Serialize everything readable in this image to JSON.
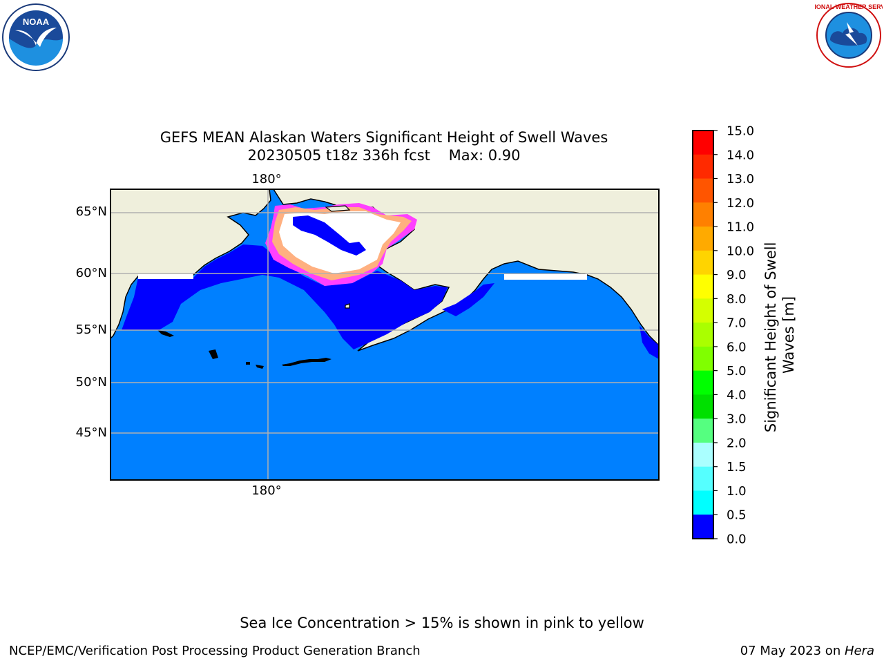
{
  "header": {
    "title_line1": "GEFS MEAN Alaskan Waters Significant Height of Swell Waves",
    "title_line2": "20230505 t18z 336h fcst    Max: 0.90"
  },
  "map": {
    "lat_labels": [
      "65°N",
      "60°N",
      "55°N",
      "50°N",
      "45°N"
    ],
    "lon_label_top": "180°",
    "lon_label_bottom": "180°",
    "ocean_color": "#0080ff",
    "nearshore_color": "#0000ff",
    "land_color": "#efefdc",
    "ice_colors": [
      "#ff40ff",
      "#ff80c0",
      "#ffb080",
      "#ffffff"
    ]
  },
  "colorbar": {
    "label": "Significant Height of Swell Waves [m]",
    "label_line1": "Significant Height of Swell",
    "label_line2": "Waves [m]",
    "ticks": [
      "15.0",
      "14.0",
      "13.0",
      "12.0",
      "11.0",
      "10.0",
      "9.0",
      "8.0",
      "7.0",
      "6.0",
      "5.0",
      "4.0",
      "3.0",
      "2.0",
      "1.5",
      "1.0",
      "0.5",
      "0.0"
    ],
    "colors_top_to_bottom": [
      "#ff0000",
      "#ff2a00",
      "#ff5500",
      "#ff8000",
      "#ffaa00",
      "#ffd400",
      "#ffff00",
      "#d4ff00",
      "#aaff00",
      "#80ff00",
      "#00ff00",
      "#00e000",
      "#55ff80",
      "#aaffff",
      "#55ffff",
      "#00ffff",
      "#0080ff",
      "#0000ff"
    ]
  },
  "footer": {
    "note": "Sea Ice Concentration > 15% is shown in pink to yellow",
    "left": "NCEP/EMC/Verification Post Processing Product Generation Branch",
    "right_date": "07 May 2023 on ",
    "right_host": "Hera"
  },
  "logos": {
    "noaa_text": "NOAA",
    "nws_text": "NATIONAL WEATHER SERVICE"
  }
}
